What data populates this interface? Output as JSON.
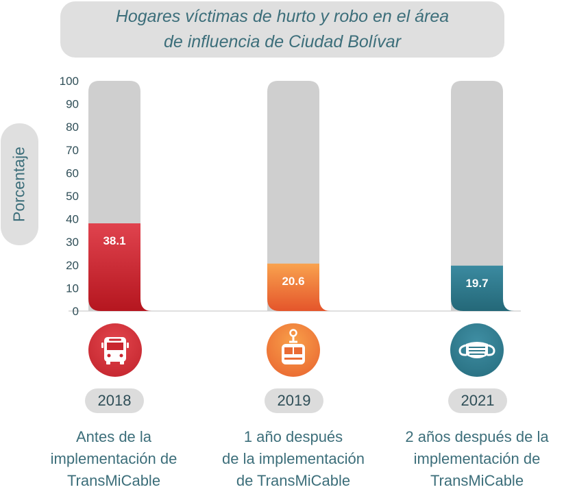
{
  "chart_data": {
    "type": "bar",
    "title": "Hogares víctimas de hurto y robo en el área\nde influencia de Ciudad Bolívar",
    "ylabel": "Porcentaje",
    "ylim": [
      0,
      100
    ],
    "yticks": [
      "100",
      "90",
      "80",
      "70",
      "60",
      "50",
      "40",
      "30",
      "20",
      "10",
      "0"
    ],
    "categories": [
      "2018",
      "2019",
      "2021"
    ],
    "values": [
      38.1,
      20.6,
      19.7
    ],
    "value_labels": [
      "38.1",
      "20.6",
      "19.7"
    ],
    "descriptions": [
      "Antes de la\nimplementación de\nTransMiCable",
      "1 año después\nde la implementación\nde TransMiCable",
      "2 años después de la\nimplementación de\nTransMiCable"
    ],
    "icons": [
      "bus-icon",
      "cable-car-icon",
      "face-mask-icon"
    ],
    "colors": {
      "bar_2018": [
        "#e0434e",
        "#b5161f"
      ],
      "bar_2019": [
        "#f9a24e",
        "#e4552b"
      ],
      "bar_2021": [
        "#3b8aa0",
        "#246878"
      ],
      "background_bar": "#cfcfcf",
      "text_teal": "#3c6e7a",
      "pill_gray": "#dcdcdc"
    }
  }
}
